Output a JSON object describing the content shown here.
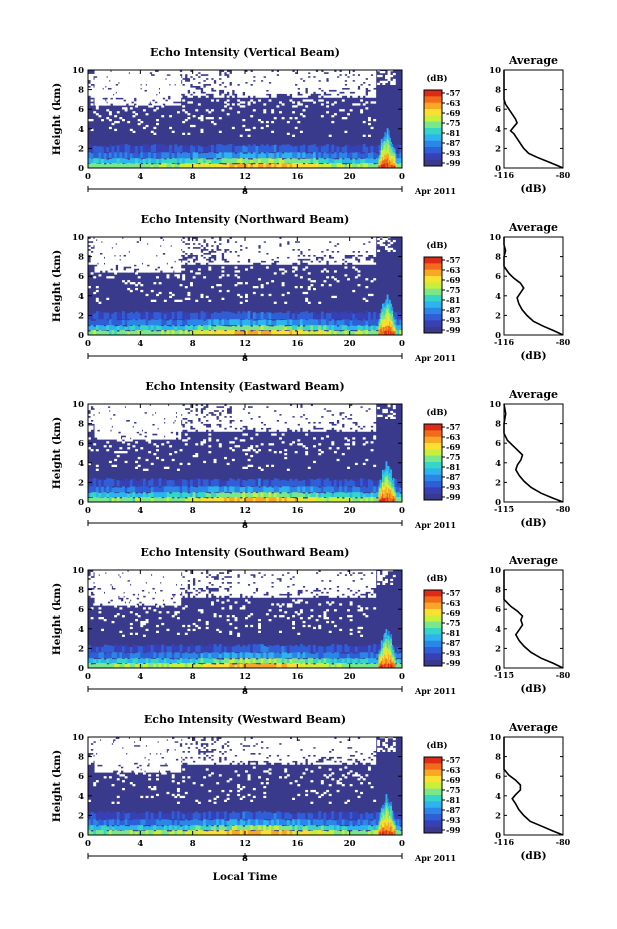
{
  "figure": {
    "xlabel": "Local Time",
    "date_label": "Apr 2011",
    "date_axis_label": "8"
  },
  "colorbar": {
    "unit": "(dB)",
    "ticks": [
      "-57",
      "-63",
      "-69",
      "-75",
      "-81",
      "-87",
      "-93",
      "-99"
    ],
    "colors": [
      "#dd2b17",
      "#f26a1a",
      "#f9a825",
      "#fbe032",
      "#c8ef3a",
      "#7ae88a",
      "#35d6c6",
      "#2db4f0",
      "#2b86e8",
      "#2f5ed6",
      "#3740b4",
      "#3a3a8c"
    ]
  },
  "chart_data": [
    {
      "type": "heatmap",
      "title": "Echo Intensity (Vertical Beam)",
      "ylabel": "Height (km)",
      "x_ticks": [
        "0",
        "4",
        "8",
        "12",
        "16",
        "20",
        "0"
      ],
      "y_ticks": [
        "0",
        "2",
        "4",
        "6",
        "8",
        "10"
      ],
      "xlim": [
        0,
        24
      ],
      "ylim": [
        0,
        10
      ],
      "profile": {
        "title": "Average",
        "xlabel": "(dB)",
        "x_ticks": [
          "-116",
          "-80"
        ],
        "y_ticks": [
          "0",
          "2",
          "4",
          "6",
          "8",
          "10"
        ],
        "xlim": [
          -116,
          -80
        ],
        "points": [
          [
            -80,
            0
          ],
          [
            -84,
            0.3
          ],
          [
            -90,
            0.7
          ],
          [
            -96,
            1.1
          ],
          [
            -101,
            1.5
          ],
          [
            -104,
            2.0
          ],
          [
            -106,
            2.5
          ],
          [
            -108,
            3.0
          ],
          [
            -110,
            3.5
          ],
          [
            -112,
            3.8
          ],
          [
            -110,
            4.2
          ],
          [
            -108,
            4.6
          ],
          [
            -109,
            5.0
          ],
          [
            -111,
            5.5
          ],
          [
            -113,
            6.0
          ],
          [
            -115,
            6.5
          ],
          [
            -116,
            7.0
          ],
          [
            -116,
            8.0
          ],
          [
            -116,
            9.0
          ],
          [
            -116,
            10.0
          ]
        ]
      }
    },
    {
      "type": "heatmap",
      "title": "Echo Intensity (Northward Beam)",
      "ylabel": "Height (km)",
      "x_ticks": [
        "0",
        "4",
        "8",
        "12",
        "16",
        "20",
        "0"
      ],
      "y_ticks": [
        "0",
        "2",
        "4",
        "6",
        "8",
        "10"
      ],
      "xlim": [
        0,
        24
      ],
      "ylim": [
        0,
        10
      ],
      "profile": {
        "title": "Average",
        "xlabel": "(dB)",
        "x_ticks": [
          "-116",
          "-80"
        ],
        "y_ticks": [
          "0",
          "2",
          "4",
          "6",
          "8",
          "10"
        ],
        "xlim": [
          -116,
          -80
        ],
        "points": [
          [
            -80,
            0
          ],
          [
            -85,
            0.4
          ],
          [
            -92,
            0.9
          ],
          [
            -98,
            1.4
          ],
          [
            -102,
            2.0
          ],
          [
            -105,
            2.6
          ],
          [
            -107,
            3.2
          ],
          [
            -108,
            3.8
          ],
          [
            -106,
            4.3
          ],
          [
            -104,
            4.8
          ],
          [
            -106,
            5.3
          ],
          [
            -110,
            5.8
          ],
          [
            -113,
            6.3
          ],
          [
            -116,
            7.0
          ],
          [
            -116,
            8.0
          ],
          [
            -115,
            8.6
          ],
          [
            -116,
            9.2
          ],
          [
            -116,
            10.0
          ]
        ]
      }
    },
    {
      "type": "heatmap",
      "title": "Echo Intensity (Eastward Beam)",
      "ylabel": "Height (km)",
      "x_ticks": [
        "0",
        "4",
        "8",
        "12",
        "16",
        "20",
        "0"
      ],
      "y_ticks": [
        "0",
        "2",
        "4",
        "6",
        "8",
        "10"
      ],
      "xlim": [
        0,
        24
      ],
      "ylim": [
        0,
        10
      ],
      "profile": {
        "title": "Average",
        "xlabel": "(dB)",
        "x_ticks": [
          "-115",
          "-80"
        ],
        "y_ticks": [
          "0",
          "2",
          "4",
          "6",
          "8",
          "10"
        ],
        "xlim": [
          -115,
          -80
        ],
        "points": [
          [
            -80,
            0
          ],
          [
            -86,
            0.4
          ],
          [
            -93,
            0.9
          ],
          [
            -99,
            1.5
          ],
          [
            -103,
            2.1
          ],
          [
            -106,
            2.7
          ],
          [
            -108,
            3.3
          ],
          [
            -107,
            3.8
          ],
          [
            -105,
            4.3
          ],
          [
            -104,
            4.8
          ],
          [
            -107,
            5.3
          ],
          [
            -110,
            5.8
          ],
          [
            -113,
            6.3
          ],
          [
            -115,
            7.0
          ],
          [
            -115,
            8.0
          ],
          [
            -114,
            9.0
          ],
          [
            -115,
            10.0
          ]
        ]
      }
    },
    {
      "type": "heatmap",
      "title": "Echo Intensity (Southward Beam)",
      "ylabel": "Height (km)",
      "x_ticks": [
        "0",
        "4",
        "8",
        "12",
        "16",
        "20",
        "0"
      ],
      "y_ticks": [
        "0",
        "2",
        "4",
        "6",
        "8",
        "10"
      ],
      "xlim": [
        0,
        24
      ],
      "ylim": [
        0,
        10
      ],
      "profile": {
        "title": "Average",
        "xlabel": "(dB)",
        "x_ticks": [
          "-115",
          "-80"
        ],
        "y_ticks": [
          "0",
          "2",
          "4",
          "6",
          "8",
          "10"
        ],
        "xlim": [
          -115,
          -80
        ],
        "points": [
          [
            -80,
            0
          ],
          [
            -86,
            0.5
          ],
          [
            -93,
            1.0
          ],
          [
            -99,
            1.6
          ],
          [
            -103,
            2.2
          ],
          [
            -106,
            2.8
          ],
          [
            -108,
            3.4
          ],
          [
            -106,
            3.9
          ],
          [
            -104,
            4.4
          ],
          [
            -105,
            4.9
          ],
          [
            -104,
            5.3
          ],
          [
            -107,
            5.8
          ],
          [
            -111,
            6.3
          ],
          [
            -115,
            7.0
          ],
          [
            -115,
            8.0
          ],
          [
            -115,
            9.0
          ],
          [
            -115,
            10.0
          ]
        ]
      }
    },
    {
      "type": "heatmap",
      "title": "Echo Intensity (Westward Beam)",
      "ylabel": "Height (km)",
      "x_ticks": [
        "0",
        "4",
        "8",
        "12",
        "16",
        "20",
        "0"
      ],
      "y_ticks": [
        "0",
        "2",
        "4",
        "6",
        "8",
        "10"
      ],
      "xlim": [
        0,
        24
      ],
      "ylim": [
        0,
        10
      ],
      "profile": {
        "title": "Average",
        "xlabel": "(dB)",
        "x_ticks": [
          "-116",
          "-80"
        ],
        "y_ticks": [
          "0",
          "2",
          "4",
          "6",
          "8",
          "10"
        ],
        "xlim": [
          -116,
          -80
        ],
        "points": [
          [
            -80,
            0
          ],
          [
            -86,
            0.4
          ],
          [
            -93,
            0.9
          ],
          [
            -100,
            1.4
          ],
          [
            -104,
            2.0
          ],
          [
            -107,
            2.6
          ],
          [
            -109,
            3.2
          ],
          [
            -111,
            3.7
          ],
          [
            -109,
            4.1
          ],
          [
            -106,
            4.6
          ],
          [
            -106,
            5.1
          ],
          [
            -109,
            5.6
          ],
          [
            -113,
            6.1
          ],
          [
            -116,
            6.7
          ],
          [
            -116,
            8.0
          ],
          [
            -116,
            9.0
          ],
          [
            -116,
            10.0
          ]
        ]
      }
    }
  ]
}
